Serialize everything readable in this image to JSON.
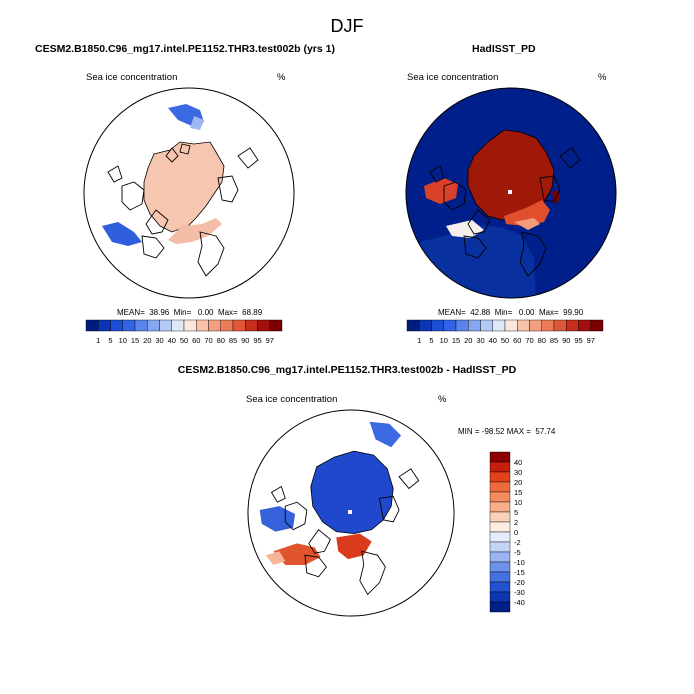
{
  "figure_title": "DJF",
  "panels": {
    "model": {
      "title": "CESM2.B1850.C96_mg17.intel.PE1152.THR3.test002b (yrs 1)",
      "left_label": "Sea ice concentration",
      "right_label": "%",
      "stats": "MEAN=  38.96  Min=   0.00  Max=  68.89"
    },
    "obs": {
      "title": "HadISST_PD",
      "left_label": "Sea ice concentration",
      "right_label": "%",
      "stats": "MEAN=  42.88  Min=   0.00  Max=  99.90"
    },
    "diff": {
      "title": "CESM2.B1850.C96_mg17.intel.PE1152.THR3.test002b - HadISST_PD",
      "left_label": "Sea ice concentration",
      "right_label": "%",
      "stats": "MIN = -98.52 MAX =  57.74"
    }
  },
  "colorbars": {
    "concentration": {
      "labels": [
        "1",
        "5",
        "10",
        "15",
        "20",
        "30",
        "40",
        "50",
        "60",
        "70",
        "80",
        "85",
        "90",
        "95",
        "97"
      ],
      "colors": [
        "#001c7f",
        "#0a35b5",
        "#1d4fd6",
        "#3163e6",
        "#5b83ed",
        "#86a6f2",
        "#b4c9f6",
        "#dfe8fb",
        "#fde7dc",
        "#f9c2aa",
        "#f4a07f",
        "#ec7c59",
        "#e0573a",
        "#c72e1e",
        "#a30f0f",
        "#7a0000"
      ]
    },
    "difference": {
      "labels": [
        "40",
        "30",
        "20",
        "15",
        "10",
        "5",
        "2",
        "0",
        "-2",
        "-5",
        "-10",
        "-15",
        "-20",
        "-30",
        "-40"
      ],
      "colors": [
        "#8b0000",
        "#c41e0e",
        "#e0421c",
        "#ee6a3a",
        "#f48c5f",
        "#f8ae87",
        "#fbd1b7",
        "#fdeee4",
        "#e5ecfb",
        "#c3d3f7",
        "#9ab5f1",
        "#6d92ea",
        "#4471e0",
        "#2250cf",
        "#0d35b0",
        "#001f86"
      ]
    }
  },
  "legend_labels": []
}
